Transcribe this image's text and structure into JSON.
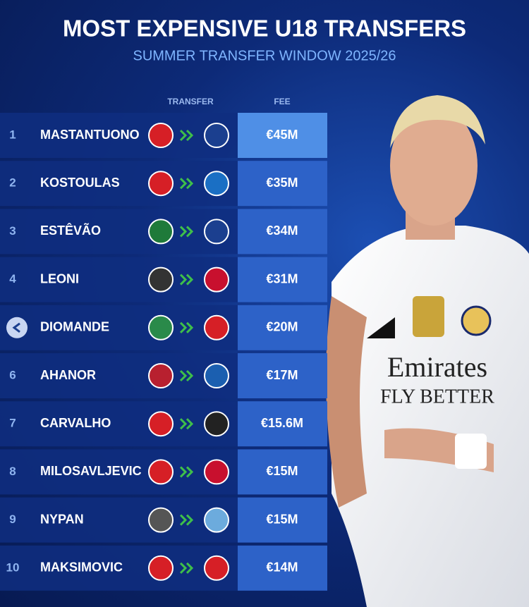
{
  "header": {
    "title": "MOST EXPENSIVE U18 TRANSFERS",
    "subtitle": "SUMMER TRANSFER WINDOW 2025/26"
  },
  "table": {
    "columns": [
      "TRANSFER",
      "FEE"
    ],
    "rows": [
      {
        "rank": "1",
        "player": "MASTANTUONO",
        "fee": "€45M"
      },
      {
        "rank": "2",
        "player": "KOSTOULAS",
        "fee": "€35M"
      },
      {
        "rank": "3",
        "player": "ESTÊVÃO",
        "fee": "€34M"
      },
      {
        "rank": "4",
        "player": "LEONI",
        "fee": "€31M"
      },
      {
        "player": "DIOMANDE",
        "fee": "€20M"
      },
      {
        "rank": "6",
        "player": "AHANOR",
        "fee": "€17M"
      },
      {
        "rank": "7",
        "player": "CARVALHO",
        "fee": "€15.6M"
      },
      {
        "rank": "8",
        "player": "MILOSAVLJEVIC",
        "fee": "€15M"
      },
      {
        "rank": "9",
        "player": "NYPAN",
        "fee": "€15M"
      },
      {
        "rank": "10",
        "player": "MAKSIMOVIC",
        "fee": "€14M"
      }
    ]
  }
}
